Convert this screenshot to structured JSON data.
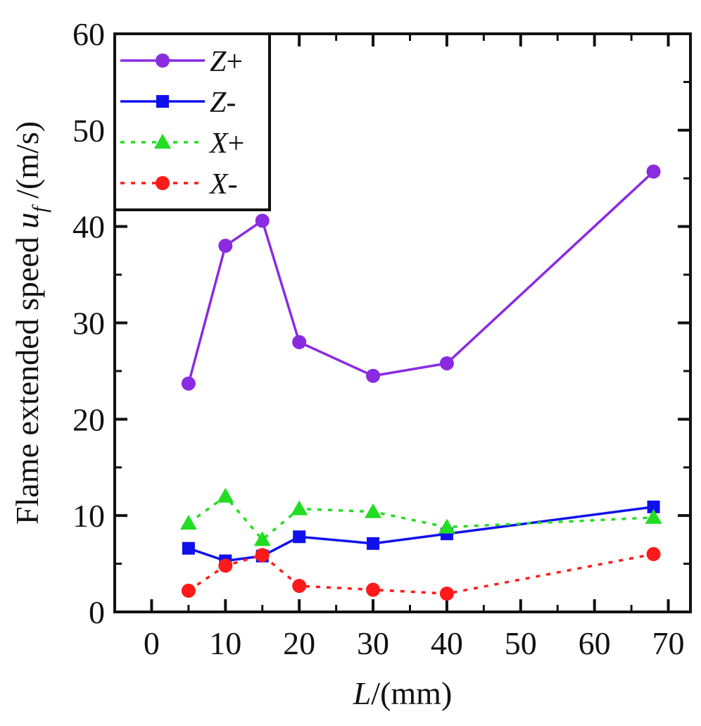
{
  "chart_data": {
    "type": "line",
    "xlabel_italic": "L",
    "xlabel_rest": "/(mm)",
    "ylabel_prefix": "Flame extended speed ",
    "ylabel_var": "u",
    "ylabel_sub": "f",
    "ylabel_suffix": " /(m/s)",
    "xlim": [
      -5,
      73
    ],
    "ylim": [
      0,
      60
    ],
    "xticks": [
      0,
      10,
      20,
      30,
      40,
      50,
      60,
      70
    ],
    "yticks": [
      0,
      10,
      20,
      30,
      40,
      50,
      60
    ],
    "legend_position": "top-left",
    "series": [
      {
        "name": "Z+",
        "label_letter": "Z",
        "label_sign": "+",
        "color": "#8a2be2",
        "marker": "circle",
        "dash": "solid",
        "x": [
          5,
          10,
          15,
          20,
          30,
          40,
          68
        ],
        "y": [
          23.7,
          38.0,
          40.6,
          28.0,
          24.5,
          25.8,
          45.7
        ]
      },
      {
        "name": "Z-",
        "label_letter": "Z",
        "label_sign": "-",
        "color": "#1010ee",
        "marker": "square",
        "dash": "solid",
        "x": [
          5,
          10,
          15,
          20,
          30,
          40,
          68
        ],
        "y": [
          6.6,
          5.3,
          5.8,
          7.8,
          7.1,
          8.1,
          10.9
        ]
      },
      {
        "name": "X+",
        "label_letter": "X",
        "label_sign": "+",
        "color": "#22dd22",
        "marker": "triangle",
        "dash": "dotted",
        "x": [
          5,
          10,
          15,
          20,
          30,
          40,
          68
        ],
        "y": [
          9.2,
          12.0,
          7.5,
          10.7,
          10.4,
          8.8,
          9.8
        ]
      },
      {
        "name": "X-",
        "label_letter": "X",
        "label_sign": "-",
        "color": "#ff1a1a",
        "marker": "circle",
        "dash": "dotted",
        "x": [
          5,
          10,
          15,
          20,
          30,
          40,
          68
        ],
        "y": [
          2.2,
          4.8,
          5.9,
          2.7,
          2.3,
          1.9,
          6.0
        ]
      }
    ]
  }
}
